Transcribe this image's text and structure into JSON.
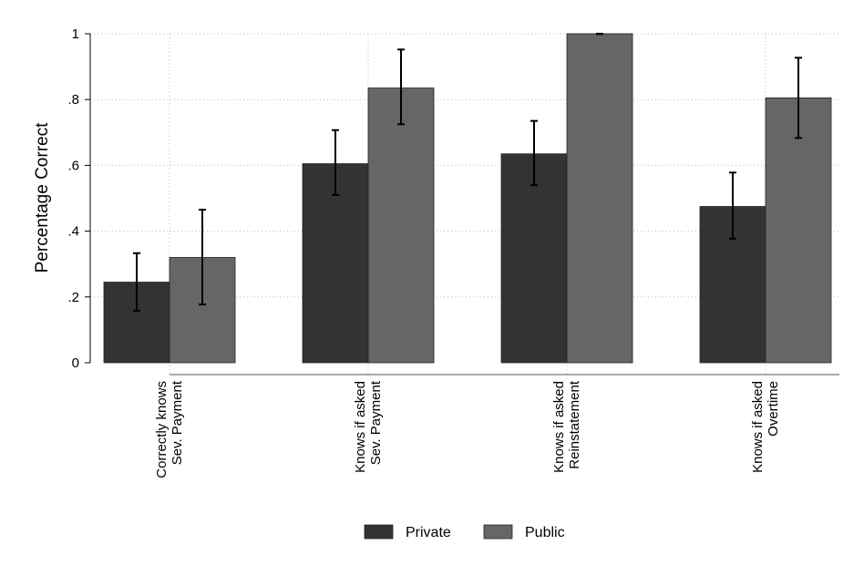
{
  "chart_data": {
    "type": "bar",
    "title": "",
    "xlabel": "",
    "ylabel": "Percentage Correct",
    "ylim": [
      0,
      1
    ],
    "yticks": [
      0,
      0.2,
      0.4,
      0.6,
      0.8,
      1
    ],
    "ytick_labels": [
      "0",
      ".2",
      ".4",
      ".6",
      ".8",
      "1"
    ],
    "grid": true,
    "legend_position": "bottom",
    "categories": [
      [
        "Correctly knows",
        "Sev. Payment"
      ],
      [
        "Knows if asked",
        "Sev. Payment"
      ],
      [
        "Knows if asked",
        "Reinstatement"
      ],
      [
        "Knows if asked",
        "Overtime"
      ]
    ],
    "series": [
      {
        "name": "Private",
        "color": "#333333",
        "values": [
          0.245,
          0.605,
          0.635,
          0.475
        ],
        "ci_low": [
          0.158,
          0.51,
          0.54,
          0.377
        ],
        "ci_high": [
          0.333,
          0.707,
          0.735,
          0.578
        ]
      },
      {
        "name": "Public",
        "color": "#666666",
        "values": [
          0.32,
          0.835,
          1.0,
          0.805
        ],
        "ci_low": [
          0.177,
          0.725,
          0.999,
          0.683
        ],
        "ci_high": [
          0.465,
          0.952,
          1.0,
          0.927
        ]
      }
    ]
  }
}
